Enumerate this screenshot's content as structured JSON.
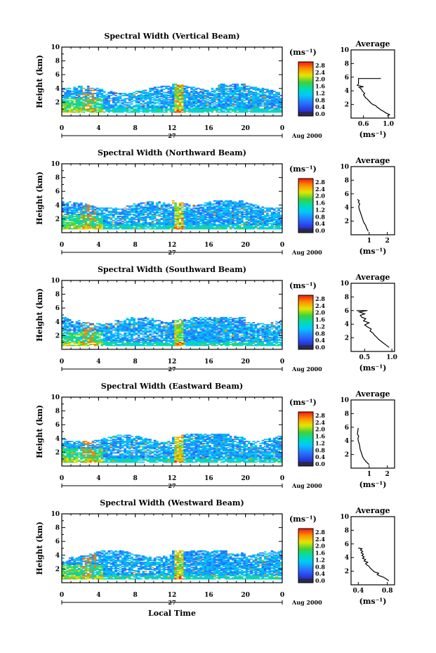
{
  "chart_data": [
    {
      "type": "heatmap",
      "title": "Spectral Width (Vertical Beam)",
      "ylabel": "Height (km)",
      "xlim": [
        0,
        24
      ],
      "ylim": [
        0,
        10
      ],
      "xticks": [
        "0",
        "4",
        "8",
        "12",
        "16",
        "20",
        "0"
      ],
      "yticks": [
        "2",
        "4",
        "6",
        "8",
        "10"
      ],
      "day_label": "27",
      "date_label": "Aug 2000",
      "colorbar": {
        "unit": "(ms⁻¹)",
        "ticks": [
          "2.8",
          "2.4",
          "2.0",
          "1.6",
          "1.2",
          "0.8",
          "0.4",
          "0.0"
        ]
      },
      "top": 3.8,
      "average": {
        "title": "Average",
        "xlabel": "(ms⁻¹)",
        "xticks": [
          "0.6",
          "1.0"
        ],
        "xlim": [
          0.4,
          1.1
        ],
        "ylim": [
          0,
          10
        ],
        "profile": [
          [
            0.98,
            0.3
          ],
          [
            1.02,
            0.5
          ],
          [
            0.95,
            0.8
          ],
          [
            0.92,
            1.0
          ],
          [
            0.88,
            1.2
          ],
          [
            0.85,
            1.4
          ],
          [
            0.82,
            1.6
          ],
          [
            0.8,
            1.8
          ],
          [
            0.75,
            2.0
          ],
          [
            0.72,
            2.2
          ],
          [
            0.7,
            2.4
          ],
          [
            0.68,
            2.6
          ],
          [
            0.66,
            2.8
          ],
          [
            0.63,
            3.0
          ],
          [
            0.62,
            3.2
          ],
          [
            0.6,
            3.4
          ],
          [
            0.62,
            3.6
          ],
          [
            0.6,
            3.8
          ],
          [
            0.58,
            4.0
          ],
          [
            0.57,
            4.2
          ],
          [
            0.55,
            4.4
          ],
          [
            0.53,
            4.5
          ],
          [
            0.6,
            4.6
          ],
          [
            0.55,
            4.7
          ],
          [
            0.5,
            4.8
          ],
          [
            0.52,
            5.0
          ],
          [
            0.52,
            5.8
          ],
          [
            0.88,
            5.8
          ]
        ]
      }
    },
    {
      "type": "heatmap",
      "title": "Spectral Width (Northward Beam)",
      "ylabel": "Height (km)",
      "xlim": [
        0,
        24
      ],
      "ylim": [
        0,
        10
      ],
      "xticks": [
        "0",
        "4",
        "8",
        "12",
        "16",
        "20",
        "0"
      ],
      "yticks": [
        "2",
        "4",
        "6",
        "8",
        "10"
      ],
      "day_label": "27",
      "date_label": "Aug 2000",
      "colorbar": {
        "unit": "(ms⁻¹)",
        "ticks": [
          "2.8",
          "2.4",
          "2.0",
          "1.6",
          "1.2",
          "0.8",
          "0.4",
          "0.0"
        ]
      },
      "top": 4.0,
      "average": {
        "title": "Average",
        "xlabel": "(ms⁻¹)",
        "xticks": [
          "1",
          "2"
        ],
        "xlim": [
          0,
          2.4
        ],
        "ylim": [
          0,
          10
        ],
        "profile": [
          [
            0.95,
            0.5
          ],
          [
            0.85,
            1.0
          ],
          [
            0.8,
            1.4
          ],
          [
            0.7,
            1.8
          ],
          [
            0.65,
            2.2
          ],
          [
            0.6,
            2.6
          ],
          [
            0.55,
            3.0
          ],
          [
            0.5,
            3.4
          ],
          [
            0.45,
            3.8
          ],
          [
            0.42,
            4.2
          ],
          [
            0.48,
            4.5
          ],
          [
            0.4,
            4.8
          ],
          [
            0.45,
            5.0
          ],
          [
            0.35,
            5.2
          ]
        ]
      }
    },
    {
      "type": "heatmap",
      "title": "Spectral Width (Southward Beam)",
      "ylabel": "Height (km)",
      "xlim": [
        0,
        24
      ],
      "ylim": [
        0,
        10
      ],
      "xticks": [
        "0",
        "4",
        "8",
        "12",
        "16",
        "20",
        "0"
      ],
      "yticks": [
        "2",
        "4",
        "6",
        "8",
        "10"
      ],
      "day_label": "27",
      "date_label": "Aug 2000",
      "colorbar": {
        "unit": "(ms⁻¹)",
        "ticks": [
          "2.8",
          "2.4",
          "2.0",
          "1.6",
          "1.2",
          "0.8",
          "0.4",
          "0.0"
        ]
      },
      "top": 4.2,
      "average": {
        "title": "Average",
        "xlabel": "(ms⁻¹)",
        "xticks": [
          "0.5",
          "1.0"
        ],
        "xlim": [
          0.25,
          1.05
        ],
        "ylim": [
          0,
          10
        ],
        "profile": [
          [
            0.95,
            0.6
          ],
          [
            0.9,
            0.9
          ],
          [
            0.85,
            1.2
          ],
          [
            0.8,
            1.5
          ],
          [
            0.75,
            1.8
          ],
          [
            0.72,
            2.1
          ],
          [
            0.68,
            2.4
          ],
          [
            0.65,
            2.7
          ],
          [
            0.6,
            3.0
          ],
          [
            0.62,
            3.3
          ],
          [
            0.55,
            3.6
          ],
          [
            0.5,
            3.9
          ],
          [
            0.58,
            4.2
          ],
          [
            0.48,
            4.5
          ],
          [
            0.52,
            4.8
          ],
          [
            0.45,
            5.0
          ],
          [
            0.42,
            5.3
          ],
          [
            0.5,
            5.5
          ],
          [
            0.4,
            5.8
          ],
          [
            0.55,
            6.0
          ],
          [
            0.35,
            6.0
          ]
        ]
      }
    },
    {
      "type": "heatmap",
      "title": "Spectral Width (Eastward Beam)",
      "ylabel": "Height (km)",
      "xlim": [
        0,
        24
      ],
      "ylim": [
        0,
        10
      ],
      "xticks": [
        "0",
        "4",
        "8",
        "12",
        "16",
        "20",
        "0"
      ],
      "yticks": [
        "2",
        "4",
        "6",
        "8",
        "10"
      ],
      "day_label": "27",
      "date_label": "Aug 2000",
      "colorbar": {
        "unit": "(ms⁻¹)",
        "ticks": [
          "2.8",
          "2.4",
          "2.0",
          "1.6",
          "1.2",
          "0.8",
          "0.4",
          "0.0"
        ]
      },
      "top": 4.0,
      "average": {
        "title": "Average",
        "xlabel": "(ms⁻¹)",
        "xticks": [
          "1",
          "2"
        ],
        "xlim": [
          0,
          2.4
        ],
        "ylim": [
          0,
          10
        ],
        "profile": [
          [
            1.0,
            0.5
          ],
          [
            0.85,
            0.9
          ],
          [
            0.75,
            1.2
          ],
          [
            0.65,
            1.6
          ],
          [
            0.6,
            2.0
          ],
          [
            0.55,
            2.4
          ],
          [
            0.5,
            2.8
          ],
          [
            0.48,
            3.2
          ],
          [
            0.45,
            3.6
          ],
          [
            0.4,
            4.0
          ],
          [
            0.38,
            4.4
          ],
          [
            0.42,
            4.7
          ],
          [
            0.35,
            5.0
          ],
          [
            0.4,
            5.9
          ]
        ]
      }
    },
    {
      "type": "heatmap",
      "title": "Spectral Width (Westward Beam)",
      "ylabel": "Height (km)",
      "xlabel": "Local Time",
      "xlim": [
        0,
        24
      ],
      "ylim": [
        0,
        10
      ],
      "xticks": [
        "0",
        "4",
        "8",
        "12",
        "16",
        "20",
        "0"
      ],
      "yticks": [
        "2",
        "4",
        "6",
        "8",
        "10"
      ],
      "day_label": "27",
      "date_label": "Aug 2000",
      "colorbar": {
        "unit": "(ms⁻¹)",
        "ticks": [
          "2.8",
          "2.4",
          "2.0",
          "1.6",
          "1.2",
          "0.8",
          "0.4",
          "0.0"
        ]
      },
      "top": 4.2,
      "average": {
        "title": "Average",
        "xlabel": "(ms⁻¹)",
        "xticks": [
          "0.4",
          "0.8"
        ],
        "xlim": [
          0.3,
          0.9
        ],
        "ylim": [
          0,
          10
        ],
        "profile": [
          [
            0.82,
            0.6
          ],
          [
            0.78,
            0.9
          ],
          [
            0.75,
            1.1
          ],
          [
            0.7,
            1.3
          ],
          [
            0.66,
            1.5
          ],
          [
            0.68,
            1.7
          ],
          [
            0.62,
            1.9
          ],
          [
            0.6,
            2.1
          ],
          [
            0.58,
            2.3
          ],
          [
            0.56,
            2.5
          ],
          [
            0.55,
            2.7
          ],
          [
            0.52,
            2.9
          ],
          [
            0.5,
            3.1
          ],
          [
            0.53,
            3.3
          ],
          [
            0.48,
            3.5
          ],
          [
            0.5,
            3.7
          ],
          [
            0.46,
            3.9
          ],
          [
            0.48,
            4.1
          ],
          [
            0.45,
            4.3
          ],
          [
            0.47,
            4.5
          ],
          [
            0.44,
            4.7
          ],
          [
            0.46,
            4.9
          ],
          [
            0.43,
            5.1
          ],
          [
            0.45,
            5.3
          ],
          [
            0.4,
            5.4
          ]
        ]
      }
    }
  ]
}
